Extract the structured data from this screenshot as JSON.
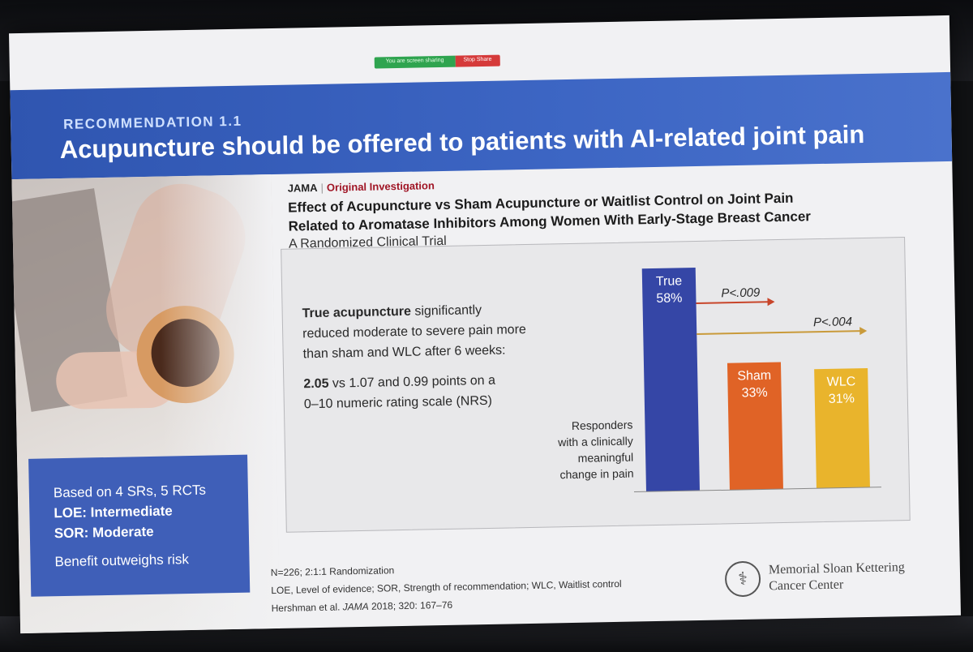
{
  "screen_share": {
    "sharing_text": "You are screen sharing",
    "stop_label": "Stop Share"
  },
  "slide": {
    "recommendation_label": "RECOMMENDATION 1.1",
    "headline": "Acupuncture should be offered to patients with AI-related joint pain"
  },
  "evidence_box": {
    "basis": "Based on 4 SRs, 5 RCTs",
    "loe": "LOE: Intermediate",
    "sor": "SOR: Moderate",
    "benefit": "Benefit outweighs risk"
  },
  "article": {
    "journal": "JAMA",
    "separator": "|",
    "section": "Original Investigation",
    "title_line1": "Effect of Acupuncture vs Sham Acupuncture or Waitlist Control on Joint Pain",
    "title_line2": "Related to Aromatase Inhibitors Among Women With Early-Stage Breast Cancer",
    "subtitle": "A Randomized Clinical Trial"
  },
  "finding": {
    "bold_lead": "True acupuncture",
    "line1_rest": " significantly",
    "line2": "reduced moderate to severe pain more",
    "line3": "than sham and WLC after 6 weeks:",
    "stat_bold": "2.05",
    "stat_rest": " vs 1.07 and 0.99 points on a",
    "stat_line2": "0–10 numeric rating scale (NRS)"
  },
  "chart_data": {
    "type": "bar",
    "categories": [
      "True",
      "Sham",
      "WLC"
    ],
    "values": [
      58,
      33,
      31
    ],
    "value_labels": [
      "58%",
      "33%",
      "31%"
    ],
    "unit": "%",
    "ylabel_lines": [
      "Responders",
      "with a clinically",
      "meaningful",
      "change in pain"
    ],
    "ylim": [
      0,
      58
    ],
    "colors": [
      "#3546a6",
      "#e06326",
      "#e9b42c"
    ],
    "comparisons": [
      {
        "label": "P<.009",
        "from": "True",
        "to": "Sham",
        "color": "#c8452a"
      },
      {
        "label": "P<.004",
        "from": "True",
        "to": "WLC",
        "color": "#c99a3a"
      }
    ],
    "grid": false
  },
  "footnotes": {
    "n": "N=226; 2:1:1 Randomization",
    "abbrev": "LOE, Level of evidence; SOR, Strength of recommendation; WLC, Waitlist control",
    "cite_pre": "Hershman et al. ",
    "cite_journal": "JAMA",
    "cite_post": " 2018; 320: 167–76"
  },
  "logo": {
    "line1": "Memorial Sloan Kettering",
    "line2": "Cancer Center"
  }
}
